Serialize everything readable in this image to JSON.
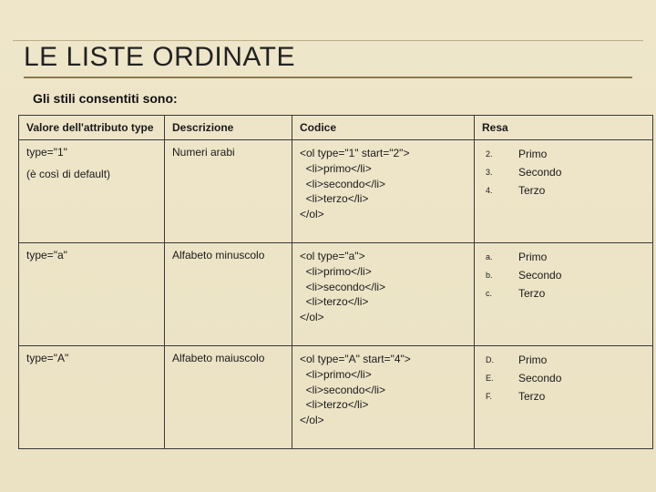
{
  "title": "LE LISTE ORDINATE",
  "subtitle": "Gli stili consentiti sono:",
  "columns": [
    "Valore dell'attributo type",
    "Descrizione",
    "Codice",
    "Resa"
  ],
  "rows": [
    {
      "attr": "type=\"1\"",
      "attr_note": "(è così di default)",
      "desc": "Numeri arabi",
      "code": "<ol type=\"1\" start=\"2\">\n  <li>primo</li>\n  <li>secondo</li>\n  <li>terzo</li>\n</ol>",
      "resa_markers": [
        "2.",
        "3.",
        "4."
      ],
      "resa_labels": [
        "Primo",
        "Secondo",
        "Terzo"
      ]
    },
    {
      "attr": "type=\"a\"",
      "attr_note": "",
      "desc": "Alfabeto minuscolo",
      "code": "<ol type=\"a\">\n  <li>primo</li>\n  <li>secondo</li>\n  <li>terzo</li>\n</ol>",
      "resa_markers": [
        "a.",
        "b.",
        "c."
      ],
      "resa_labels": [
        "Primo",
        "Secondo",
        "Terzo"
      ]
    },
    {
      "attr": "type=\"A\"",
      "attr_note": "",
      "desc": "Alfabeto maiuscolo",
      "code": "<ol type=\"A\" start=\"4\">\n  <li>primo</li>\n  <li>secondo</li>\n  <li>terzo</li>\n</ol>",
      "resa_markers": [
        "D.",
        "E.",
        "F."
      ],
      "resa_labels": [
        "Primo",
        "Secondo",
        "Terzo"
      ]
    }
  ],
  "colors": {
    "background": "#ede4c8",
    "title_underline": "#8a7a4d",
    "border": "#3a3a3a",
    "hairline": "#bcae88"
  },
  "fontsizes": {
    "title": 30,
    "subtitle": 14,
    "table": 12,
    "resa_marker": 9
  }
}
